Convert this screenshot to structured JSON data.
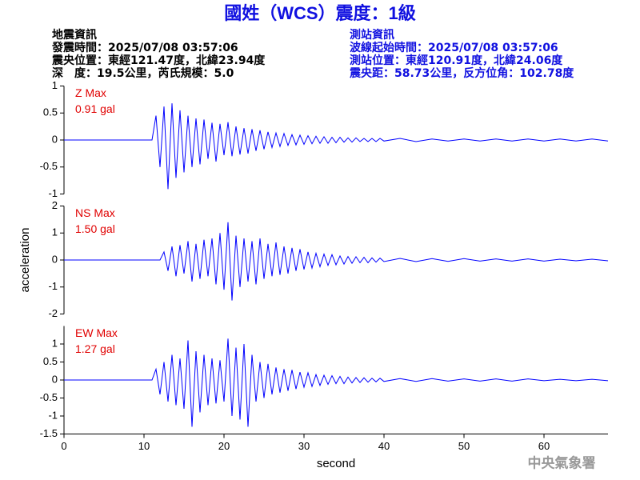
{
  "header": {
    "title": "國姓（WCS）震度：1級",
    "left": [
      "地震資訊",
      "發震時間：2025/07/08 03:57:06",
      "震央位置：東經121.47度，北緯23.94度",
      "深　度：19.5公里，芮氏規模：5.0"
    ],
    "right": [
      "測站資訊",
      "波線起始時間：2025/07/08 03:57:06",
      "測站位置：東經120.91度，北緯24.06度",
      "震央距：58.73公里，反方位角：102.78度"
    ],
    "footer": "中央氣象署"
  },
  "chart_data": [
    {
      "type": "line",
      "label": "Z Max",
      "max_label": "0.91 gal",
      "color": "#0000ff",
      "label_color": "#e00000",
      "x": [
        0,
        11,
        11.5,
        12,
        12.5,
        13,
        13.5,
        14,
        14.5,
        15,
        15.5,
        16,
        16.5,
        17,
        17.5,
        18,
        18.5,
        19,
        19.5,
        20,
        20.5,
        21,
        21.5,
        22,
        22.5,
        23,
        23.5,
        24,
        24.5,
        25,
        25.5,
        26,
        26.5,
        27,
        27.5,
        28,
        28.5,
        29,
        29.5,
        30,
        30.5,
        31,
        31.5,
        32,
        32.5,
        33,
        33.5,
        34,
        34.5,
        35,
        35.5,
        36,
        36.5,
        37,
        37.5,
        38,
        38.5,
        39,
        39.5,
        40,
        42,
        44,
        46,
        48,
        50,
        52,
        54,
        56,
        58,
        60,
        62,
        64,
        66,
        68
      ],
      "values": [
        0,
        0,
        0.45,
        -0.5,
        0.62,
        -0.91,
        0.68,
        -0.7,
        0.55,
        -0.6,
        0.45,
        -0.5,
        0.4,
        -0.45,
        0.38,
        -0.35,
        0.32,
        -0.4,
        0.3,
        -0.28,
        0.33,
        -0.3,
        0.25,
        -0.27,
        0.22,
        -0.25,
        0.2,
        -0.2,
        0.18,
        -0.17,
        0.15,
        -0.14,
        0.13,
        -0.12,
        0.12,
        -0.1,
        0.1,
        -0.09,
        0.09,
        -0.08,
        0.08,
        -0.07,
        0.07,
        -0.06,
        0.06,
        -0.06,
        0.05,
        -0.05,
        0.05,
        -0.04,
        0.04,
        -0.04,
        0.04,
        -0.03,
        0.03,
        -0.03,
        0.03,
        -0.03,
        0.03,
        -0.02,
        0.03,
        -0.03,
        0.02,
        -0.02,
        0.02,
        -0.02,
        0.02,
        -0.02,
        0.02,
        -0.02,
        0.02,
        -0.02,
        0.02,
        -0.02
      ],
      "xlim": [
        0,
        68
      ],
      "ylim": [
        -1,
        1
      ],
      "yticks": [
        -1,
        -0.5,
        0,
        0.5,
        1
      ]
    },
    {
      "type": "line",
      "label": "NS Max",
      "max_label": "1.50 gal",
      "color": "#0000ff",
      "label_color": "#e00000",
      "ylabel": "acceleration",
      "x": [
        0,
        11,
        11.5,
        12,
        12.5,
        13,
        13.5,
        14,
        14.5,
        15,
        15.5,
        16,
        16.5,
        17,
        17.5,
        18,
        18.5,
        19,
        19.5,
        20,
        20.5,
        21,
        21.5,
        22,
        22.5,
        23,
        23.5,
        24,
        24.5,
        25,
        25.5,
        26,
        26.5,
        27,
        27.5,
        28,
        28.5,
        29,
        29.5,
        30,
        30.5,
        31,
        31.5,
        32,
        32.5,
        33,
        33.5,
        34,
        34.5,
        35,
        35.5,
        36,
        36.5,
        37,
        37.5,
        38,
        38.5,
        39,
        39.5,
        40,
        42,
        44,
        46,
        48,
        50,
        52,
        54,
        56,
        58,
        60,
        62,
        64,
        66,
        68
      ],
      "values": [
        0,
        0,
        0,
        0,
        0.3,
        -0.4,
        0.5,
        -0.6,
        0.55,
        -0.5,
        0.7,
        -0.8,
        0.6,
        -0.7,
        0.75,
        -0.6,
        0.8,
        -0.9,
        1.0,
        -1.1,
        1.4,
        -1.5,
        0.9,
        -1.0,
        0.8,
        -0.8,
        0.7,
        -0.9,
        0.8,
        -0.7,
        0.6,
        -0.6,
        0.65,
        -0.55,
        0.5,
        -0.5,
        0.45,
        -0.4,
        0.4,
        -0.35,
        0.3,
        -0.3,
        0.25,
        -0.25,
        0.22,
        -0.2,
        0.2,
        -0.18,
        0.15,
        -0.15,
        0.13,
        -0.12,
        0.12,
        -0.1,
        0.1,
        -0.1,
        0.08,
        -0.08,
        0.07,
        -0.06,
        0.06,
        -0.06,
        0.05,
        -0.05,
        0.05,
        -0.04,
        0.04,
        -0.04,
        0.04,
        -0.04,
        0.03,
        -0.03,
        0.03,
        -0.03
      ],
      "xlim": [
        0,
        68
      ],
      "ylim": [
        -2,
        2
      ],
      "yticks": [
        -2,
        -1,
        0,
        1,
        2
      ]
    },
    {
      "type": "line",
      "label": "EW Max",
      "max_label": "1.27 gal",
      "color": "#0000ff",
      "label_color": "#e00000",
      "xlabel": "second",
      "x": [
        0,
        11,
        11.5,
        12,
        12.5,
        13,
        13.5,
        14,
        14.5,
        15,
        15.5,
        16,
        16.5,
        17,
        17.5,
        18,
        18.5,
        19,
        19.5,
        20,
        20.5,
        21,
        21.5,
        22,
        22.5,
        23,
        23.5,
        24,
        24.5,
        25,
        25.5,
        26,
        26.5,
        27,
        27.5,
        28,
        28.5,
        29,
        29.5,
        30,
        30.5,
        31,
        31.5,
        32,
        32.5,
        33,
        33.5,
        34,
        34.5,
        35,
        35.5,
        36,
        36.5,
        37,
        37.5,
        38,
        38.5,
        39,
        39.5,
        40,
        42,
        44,
        46,
        48,
        50,
        52,
        54,
        56,
        58,
        60,
        62,
        64,
        66,
        68
      ],
      "values": [
        0,
        0,
        0.3,
        -0.4,
        0.5,
        -0.6,
        0.7,
        -0.7,
        0.6,
        -0.8,
        1.1,
        -1.3,
        0.8,
        -0.9,
        0.7,
        -0.7,
        0.6,
        -0.65,
        0.55,
        -0.6,
        1.15,
        -1.0,
        0.9,
        -1.1,
        1.0,
        -1.3,
        0.7,
        -0.6,
        0.5,
        -0.5,
        0.45,
        -0.4,
        0.35,
        -0.35,
        0.3,
        -0.3,
        0.28,
        -0.25,
        0.22,
        -0.2,
        0.2,
        -0.18,
        0.15,
        -0.15,
        0.13,
        -0.12,
        0.12,
        -0.1,
        0.1,
        -0.1,
        0.08,
        -0.08,
        0.07,
        -0.07,
        0.06,
        -0.06,
        0.05,
        -0.05,
        0.05,
        -0.04,
        0.04,
        -0.04,
        0.04,
        -0.03,
        0.03,
        -0.03,
        0.03,
        -0.03,
        0.03,
        -0.02,
        0.02,
        -0.02,
        0.02,
        -0.02
      ],
      "xlim": [
        0,
        68
      ],
      "ylim": [
        -1.5,
        1.5
      ],
      "yticks": [
        -1.5,
        -1,
        -0.5,
        0,
        0.5,
        1
      ],
      "xticks": [
        0,
        10,
        20,
        30,
        40,
        50,
        60
      ]
    }
  ]
}
